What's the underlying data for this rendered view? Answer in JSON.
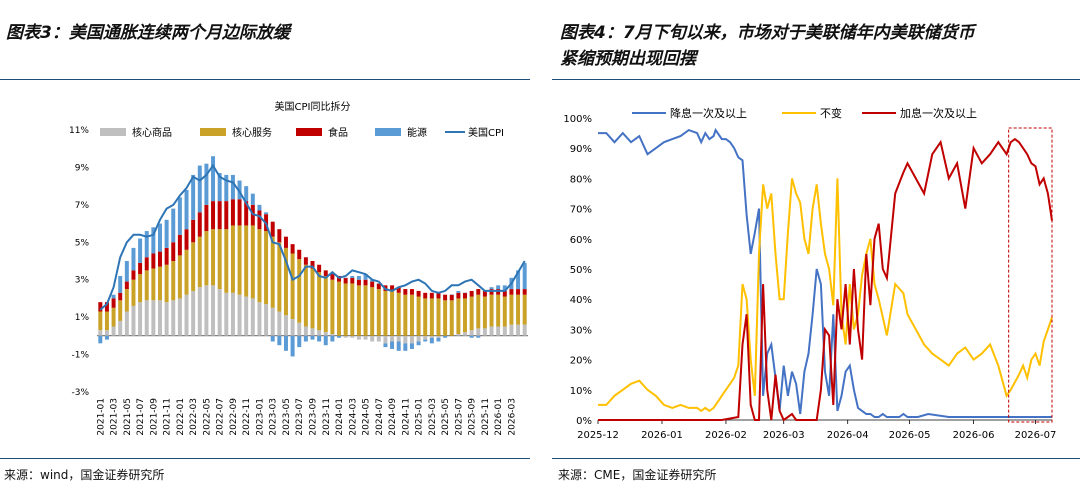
{
  "left_title": "图表3：美国通胀连续两个月边际放缓",
  "right_title_line1": "图表4：7月下旬以来，市场对于美联储年内美联储货币",
  "right_title_line2": "紧缩预期出现回摆",
  "left_source": "来源：wind，国金证券研究所",
  "right_source": "来源：CME，国金证券研究所",
  "colors": {
    "core_goods": "#bfbfbf",
    "core_services": "#c9a227",
    "food": "#c00000",
    "energy": "#5b9bd5",
    "cpi": "#2e75b6",
    "cut": "#4472c4",
    "hold": "#ffc000",
    "hike": "#c00000",
    "rule": "#1f4e79"
  },
  "chart_data": [
    {
      "type": "bar",
      "title": "美国CPI同比拆分",
      "ylim": [
        -3,
        11
      ],
      "yticks": [
        "-3%",
        "-1%",
        "1%",
        "3%",
        "5%",
        "7%",
        "9%",
        "11%"
      ],
      "ytick_values": [
        -3,
        -1,
        1,
        3,
        5,
        7,
        9,
        11
      ],
      "xtick_labels": [
        "2021-01",
        "2021-03",
        "2021-05",
        "2021-07",
        "2021-09",
        "2021-11",
        "2022-01",
        "2022-03",
        "2022-05",
        "2022-07",
        "2022-09",
        "2022-11",
        "2023-01",
        "2023-03",
        "2023-05",
        "2023-07",
        "2023-09",
        "2023-11",
        "2024-01",
        "2024-03",
        "2024-05",
        "2024-07",
        "2024-09",
        "2024-11",
        "2025-01",
        "2025-03",
        "2025-05",
        "2025-07",
        "2025-09",
        "2025-11",
        "2026-01",
        "2026-03"
      ],
      "legend": [
        "核心商品",
        "核心服务",
        "食品",
        "能源",
        "美国CPI"
      ],
      "series": [
        {
          "name": "核心商品",
          "values": [
            0.3,
            0.3,
            0.5,
            0.8,
            1.3,
            1.6,
            1.8,
            1.9,
            1.9,
            1.9,
            1.8,
            1.9,
            2.0,
            2.2,
            2.4,
            2.6,
            2.7,
            2.7,
            2.5,
            2.3,
            2.3,
            2.2,
            2.1,
            2.0,
            1.8,
            1.7,
            1.5,
            1.3,
            1.1,
            0.9,
            0.7,
            0.5,
            0.4,
            0.3,
            0.2,
            0.1,
            0.0,
            -0.1,
            -0.1,
            -0.2,
            -0.2,
            -0.3,
            -0.3,
            -0.4,
            -0.3,
            -0.3,
            -0.4,
            -0.4,
            -0.3,
            -0.2,
            -0.1,
            -0.1,
            0.0,
            0.0,
            0.1,
            0.2,
            0.3,
            0.4,
            0.4,
            0.5,
            0.5,
            0.5,
            0.6,
            0.6,
            0.6
          ]
        },
        {
          "name": "核心服务",
          "values": [
            1.0,
            1.0,
            1.0,
            1.1,
            1.2,
            1.4,
            1.5,
            1.6,
            1.7,
            1.8,
            2.0,
            2.1,
            2.3,
            2.4,
            2.6,
            2.7,
            2.9,
            3.0,
            3.2,
            3.4,
            3.6,
            3.7,
            3.8,
            3.9,
            3.9,
            3.9,
            3.8,
            3.7,
            3.6,
            3.5,
            3.4,
            3.3,
            3.2,
            3.1,
            3.0,
            2.9,
            2.9,
            2.8,
            2.8,
            2.7,
            2.7,
            2.6,
            2.5,
            2.4,
            2.4,
            2.3,
            2.2,
            2.2,
            2.1,
            2.0,
            2.0,
            2.0,
            1.9,
            1.9,
            1.9,
            1.8,
            1.8,
            1.8,
            1.7,
            1.7,
            1.7,
            1.6,
            1.6,
            1.6,
            1.6
          ]
        },
        {
          "name": "食品",
          "values": [
            0.5,
            0.5,
            0.5,
            0.4,
            0.4,
            0.5,
            0.6,
            0.7,
            0.8,
            0.8,
            0.9,
            1.0,
            1.1,
            1.1,
            1.2,
            1.3,
            1.4,
            1.5,
            1.5,
            1.5,
            1.4,
            1.4,
            1.3,
            1.1,
            1.0,
            0.9,
            0.8,
            0.7,
            0.6,
            0.5,
            0.5,
            0.4,
            0.4,
            0.4,
            0.3,
            0.3,
            0.3,
            0.3,
            0.3,
            0.3,
            0.3,
            0.3,
            0.3,
            0.3,
            0.3,
            0.3,
            0.3,
            0.3,
            0.3,
            0.3,
            0.3,
            0.3,
            0.3,
            0.3,
            0.3,
            0.3,
            0.3,
            0.3,
            0.3,
            0.3,
            0.3,
            0.3,
            0.3,
            0.3,
            0.3
          ]
        },
        {
          "name": "能源",
          "values": [
            -0.4,
            -0.2,
            0.2,
            0.9,
            1.1,
            1.2,
            1.3,
            1.4,
            1.4,
            1.5,
            1.5,
            1.8,
            2.0,
            2.1,
            2.4,
            2.5,
            2.2,
            2.4,
            1.5,
            1.4,
            1.3,
            1.0,
            0.8,
            0.6,
            0.3,
            0.1,
            -0.3,
            -0.5,
            -0.8,
            -1.1,
            -0.6,
            -0.3,
            -0.2,
            -0.3,
            -0.5,
            -0.3,
            -0.1,
            0.0,
            0.1,
            0.2,
            0.3,
            0.1,
            0.0,
            -0.2,
            -0.4,
            -0.5,
            -0.4,
            -0.3,
            -0.2,
            -0.1,
            -0.3,
            -0.2,
            -0.1,
            0.0,
            0.1,
            0.0,
            -0.1,
            -0.1,
            0.0,
            0.1,
            0.2,
            0.3,
            0.6,
            1.0,
            1.4
          ]
        },
        {
          "name": "美国CPI",
          "values": [
            1.4,
            1.7,
            2.6,
            4.2,
            5.0,
            5.4,
            5.4,
            5.3,
            5.4,
            6.2,
            6.8,
            7.0,
            7.5,
            7.9,
            8.5,
            8.3,
            8.6,
            9.1,
            8.5,
            8.3,
            8.2,
            7.7,
            7.1,
            6.5,
            6.4,
            6.0,
            5.0,
            4.9,
            4.0,
            3.0,
            3.2,
            3.7,
            3.7,
            3.2,
            3.1,
            3.4,
            3.1,
            3.2,
            3.5,
            3.4,
            3.3,
            3.0,
            2.9,
            2.5,
            2.4,
            2.6,
            2.7,
            2.9,
            3.0,
            2.8,
            2.4,
            2.3,
            2.4,
            2.7,
            2.7,
            2.9,
            3.0,
            2.7,
            2.4,
            2.4,
            2.4,
            2.4,
            2.8,
            3.4,
            4.0
          ]
        }
      ]
    },
    {
      "type": "line",
      "ylim": [
        0,
        100
      ],
      "yticks": [
        "0%",
        "10%",
        "20%",
        "30%",
        "40%",
        "50%",
        "60%",
        "70%",
        "80%",
        "90%",
        "100%"
      ],
      "ytick_values": [
        0,
        10,
        20,
        30,
        40,
        50,
        60,
        70,
        80,
        90,
        100
      ],
      "xtick_labels": [
        "2025-12",
        "2026-01",
        "2026-02",
        "2026-03",
        "2026-04",
        "2026-05",
        "2026-06",
        "2026-07"
      ],
      "x_range": [
        0,
        220
      ],
      "xtick_positions": [
        0,
        31,
        62,
        90,
        121,
        151,
        182,
        212
      ],
      "legend": [
        "降息一次及以上",
        "不变",
        "加息一次及以上"
      ],
      "highlight_x": [
        199,
        220
      ],
      "series": [
        {
          "name": "降息一次及以上",
          "x": [
            0,
            4,
            8,
            12,
            16,
            20,
            24,
            28,
            32,
            36,
            40,
            44,
            48,
            50,
            52,
            54,
            56,
            57,
            58,
            60,
            62,
            64,
            66,
            68,
            70,
            72,
            74,
            76,
            78,
            80,
            82,
            84,
            86,
            88,
            90,
            92,
            94,
            96,
            98,
            100,
            102,
            104,
            106,
            108,
            110,
            112,
            114,
            116,
            118,
            120,
            122,
            124,
            126,
            128,
            130,
            132,
            134,
            136,
            138,
            140,
            142,
            144,
            146,
            148,
            150,
            155,
            160,
            170,
            180,
            190,
            200,
            210,
            220
          ],
          "y": [
            95,
            95,
            92,
            95,
            92,
            94,
            88,
            90,
            92,
            93,
            94,
            96,
            95,
            92,
            95,
            93,
            94,
            96,
            95,
            93,
            93,
            92,
            90,
            87,
            86,
            68,
            55,
            62,
            70,
            8,
            22,
            25,
            14,
            3,
            18,
            8,
            16,
            12,
            2,
            16,
            22,
            35,
            50,
            45,
            16,
            8,
            35,
            3,
            8,
            16,
            18,
            10,
            4,
            3,
            2,
            2,
            1,
            1,
            2,
            1,
            1,
            1,
            1,
            2,
            1,
            1,
            2,
            1,
            1,
            1,
            1,
            1,
            1
          ]
        },
        {
          "name": "不变",
          "x": [
            0,
            4,
            8,
            12,
            16,
            20,
            24,
            28,
            32,
            36,
            40,
            44,
            48,
            50,
            52,
            54,
            56,
            58,
            60,
            62,
            64,
            66,
            68,
            70,
            72,
            74,
            76,
            78,
            80,
            82,
            84,
            86,
            88,
            90,
            92,
            94,
            96,
            98,
            100,
            102,
            104,
            106,
            108,
            110,
            112,
            114,
            116,
            118,
            120,
            122,
            124,
            126,
            128,
            130,
            132,
            134,
            136,
            140,
            144,
            148,
            150,
            154,
            158,
            162,
            166,
            170,
            174,
            178,
            182,
            186,
            190,
            194,
            198,
            200,
            204,
            206,
            208,
            210,
            212,
            214,
            216,
            218,
            220
          ],
          "y": [
            5,
            5,
            8,
            10,
            12,
            13,
            10,
            8,
            5,
            4,
            5,
            4,
            4,
            3,
            4,
            3,
            4,
            6,
            8,
            10,
            12,
            14,
            18,
            45,
            40,
            20,
            8,
            55,
            78,
            70,
            75,
            55,
            40,
            40,
            62,
            80,
            75,
            72,
            60,
            55,
            70,
            78,
            65,
            55,
            50,
            38,
            80,
            35,
            25,
            45,
            30,
            35,
            48,
            55,
            60,
            45,
            40,
            28,
            45,
            42,
            35,
            30,
            25,
            22,
            20,
            18,
            22,
            24,
            20,
            22,
            25,
            18,
            8,
            10,
            15,
            18,
            14,
            20,
            22,
            18,
            26,
            30,
            34
          ]
        },
        {
          "name": "加息一次及以上",
          "x": [
            0,
            40,
            60,
            68,
            70,
            72,
            74,
            76,
            78,
            80,
            82,
            84,
            86,
            88,
            90,
            92,
            94,
            96,
            98,
            100,
            102,
            104,
            106,
            108,
            110,
            112,
            114,
            116,
            118,
            120,
            122,
            124,
            126,
            128,
            130,
            132,
            134,
            136,
            138,
            140,
            144,
            148,
            150,
            154,
            158,
            162,
            166,
            170,
            174,
            178,
            182,
            186,
            190,
            194,
            198,
            200,
            202,
            204,
            206,
            208,
            210,
            212,
            214,
            216,
            218,
            220
          ],
          "y": [
            0,
            0,
            0,
            1,
            25,
            35,
            5,
            0,
            0,
            45,
            10,
            0,
            15,
            3,
            0,
            1,
            2,
            0,
            0,
            0,
            0,
            0,
            0,
            10,
            30,
            28,
            5,
            40,
            30,
            45,
            25,
            50,
            30,
            20,
            55,
            38,
            60,
            65,
            50,
            47,
            75,
            82,
            85,
            80,
            75,
            88,
            92,
            80,
            85,
            70,
            90,
            85,
            88,
            92,
            88,
            92,
            93,
            92,
            90,
            88,
            85,
            84,
            78,
            80,
            75,
            66
          ]
        }
      ]
    }
  ]
}
